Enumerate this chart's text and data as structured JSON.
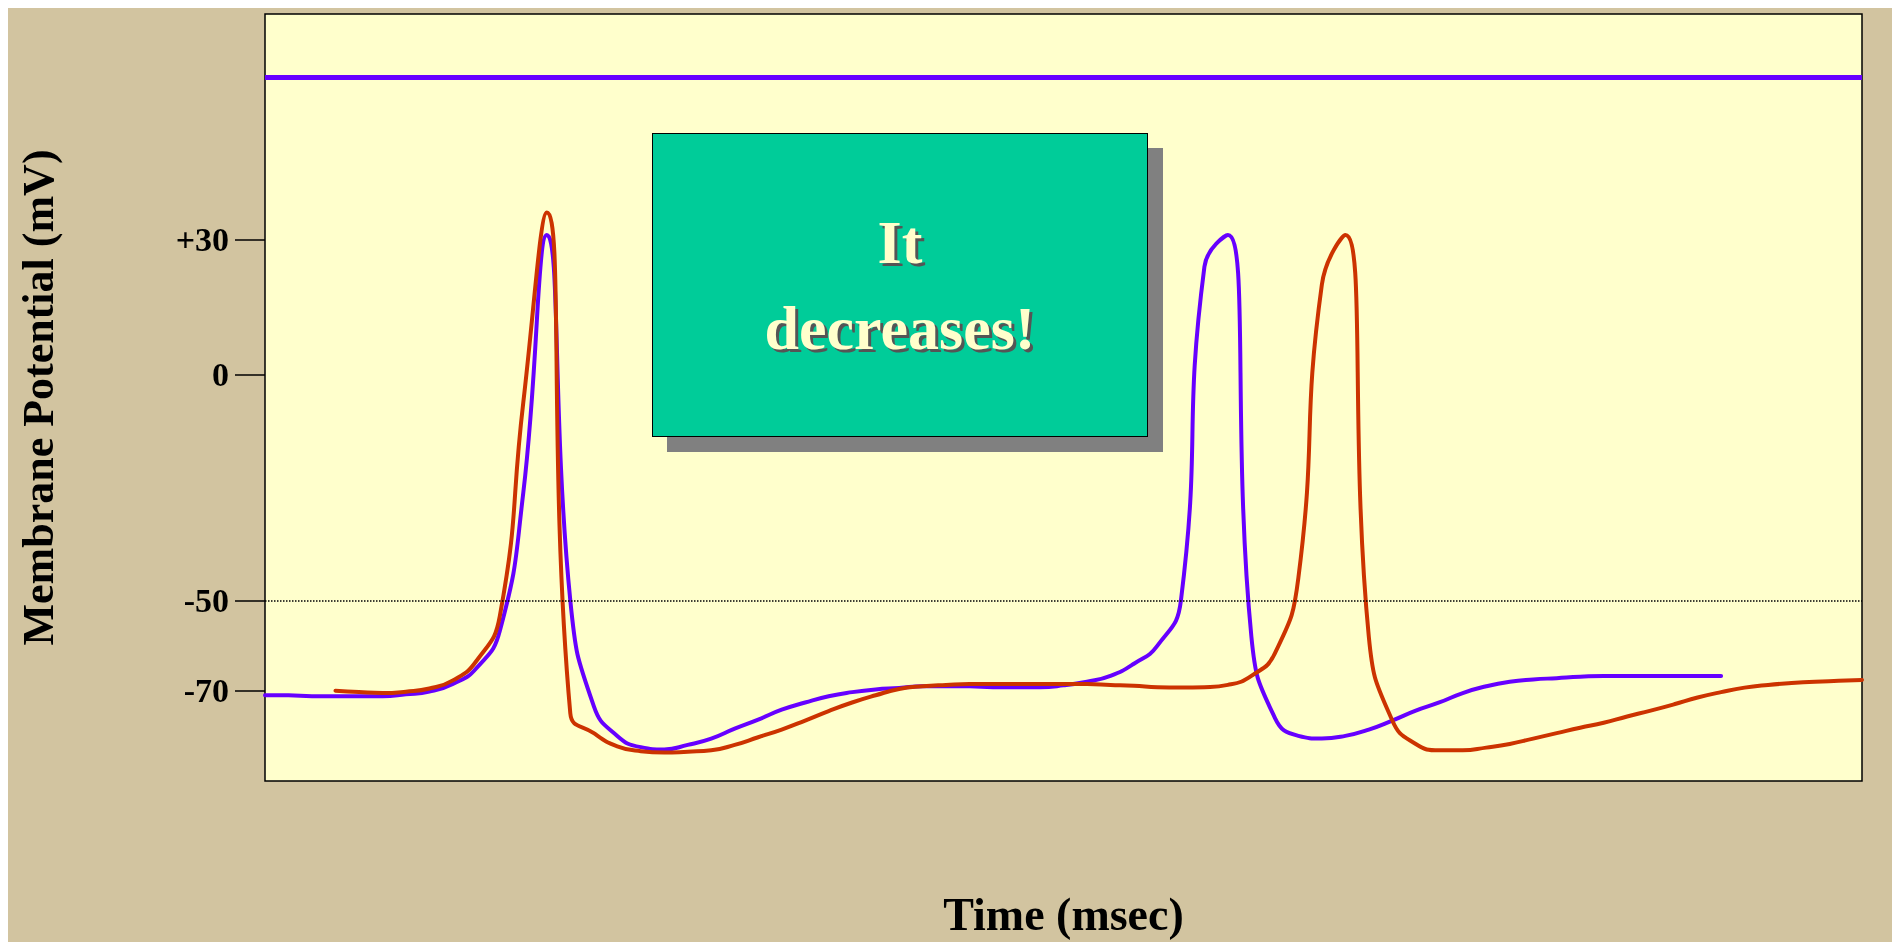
{
  "chart_data": {
    "type": "line",
    "xlabel": "Time (msec)",
    "ylabel": "Membrane Potential (mV)",
    "categories": [
      null,
      null,
      null,
      null,
      null,
      null,
      null,
      null,
      null,
      null,
      null,
      null,
      null,
      null,
      null,
      null,
      null,
      null,
      null,
      null,
      null,
      null,
      null,
      null,
      null,
      null,
      null,
      null,
      null,
      null,
      null,
      null,
      null,
      null,
      null,
      null,
      null,
      null,
      null,
      null,
      null,
      null,
      null,
      null,
      null,
      null,
      null,
      null,
      null,
      null,
      null,
      null,
      null,
      null,
      null,
      null,
      null,
      null,
      null,
      null,
      null,
      null,
      null,
      null,
      null,
      null,
      null,
      null,
      null
    ],
    "series": [
      {
        "color": "#6600ff",
        "values": [
          -71,
          -71,
          -71.2,
          -71.2,
          -71.2,
          -71.2,
          -70.8,
          -70.2,
          -68.5,
          -65,
          -56.7,
          -26,
          31,
          -50,
          -73.4,
          -80,
          -82.5,
          -83,
          -82,
          -80.6,
          -78.4,
          -76.4,
          -74.2,
          -72.6,
          -71.2,
          -70.3,
          -69.7,
          -69.4,
          -69,
          -69,
          -69,
          -69.2,
          -69.2,
          -69.2,
          -68.8,
          -68,
          -66.7,
          -64,
          -60,
          -50,
          24,
          31,
          -58,
          -76,
          -80,
          -80.6,
          -80,
          -78.6,
          -76.6,
          -74.4,
          -72.6,
          -70.5,
          -69,
          -68,
          -67.5,
          -67.2,
          -66.9,
          -66.7,
          -66.7,
          -66.7,
          -66.7,
          -66.7,
          -66.7,
          null,
          null,
          null,
          null,
          null,
          null
        ]
      },
      {
        "color": "#cc3300",
        "values": [
          null,
          null,
          null,
          -70,
          -70.3,
          -70.5,
          -70.2,
          -69.5,
          -67.7,
          -63.4,
          -53.4,
          -6,
          36,
          -75,
          -79.4,
          -82.3,
          -83.4,
          -83.7,
          -83.5,
          -83.2,
          -82,
          -80.3,
          -78.6,
          -76.6,
          -74.5,
          -72.6,
          -71,
          -69.6,
          -69,
          -68.7,
          -68.5,
          -68.5,
          -68.5,
          -68.5,
          -68.5,
          -68.5,
          -68.7,
          -68.9,
          -69.2,
          -69.3,
          -69.2,
          -68.7,
          -66.7,
          -61.7,
          -45,
          20,
          31,
          -58,
          -76.6,
          -81.8,
          -83.2,
          -83.2,
          -82.6,
          -81.8,
          -80.6,
          -79.4,
          -78.2,
          -77.1,
          -75.7,
          -74.4,
          -73,
          -71.5,
          -70.3,
          -69.3,
          -68.7,
          -68.3,
          -68,
          -67.8,
          -67.6
        ]
      }
    ],
    "ylim": [
      -90,
      80
    ],
    "yticks": [
      -70,
      -50,
      0,
      {
        "value": 30,
        "label": "+30"
      }
    ],
    "tick_labels": "y",
    "grid": false,
    "marker": "none",
    "line_style": "solid",
    "ref_lines": [
      {
        "axis": "y",
        "value": -50,
        "color": "#000000",
        "line_style": "dotted"
      },
      {
        "axis": "y",
        "value": 66,
        "color": "#6600ff",
        "line_style": "solid"
      }
    ],
    "annotations": [
      "It decreases!"
    ]
  }
}
